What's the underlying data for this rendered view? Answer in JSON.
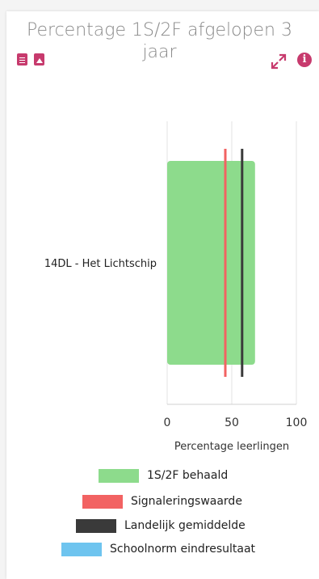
{
  "title_lines": [
    "Percentage 1S/2F afgelopen 3",
    "jaar"
  ],
  "icons": [
    "document-icon",
    "image-icon",
    "expand-icon",
    "info-icon"
  ],
  "colors": {
    "accent": "#c73a6d",
    "behaald": "#8ddb8c",
    "signalering": "#f26262",
    "landelijk": "#3a3a3a",
    "schoolnorm": "#6ec4ef"
  },
  "chart_data": {
    "type": "bar",
    "orientation": "horizontal",
    "categories": [
      "14DL - Het Lichtschip"
    ],
    "series": [
      {
        "name": "1S/2F behaald",
        "values": [
          68
        ]
      }
    ],
    "reference_lines": [
      {
        "name": "Signaleringswaarde",
        "values": [
          45
        ]
      },
      {
        "name": "Landelijk gemiddelde",
        "values": [
          58
        ]
      }
    ],
    "legend_only": [
      {
        "name": "Schoolnorm eindresultaat"
      }
    ],
    "xlabel": "Percentage leerlingen",
    "xlim": [
      0,
      100
    ],
    "xticks": [
      "0",
      "50",
      "100"
    ],
    "grid": true,
    "legend_position": "bottom"
  }
}
